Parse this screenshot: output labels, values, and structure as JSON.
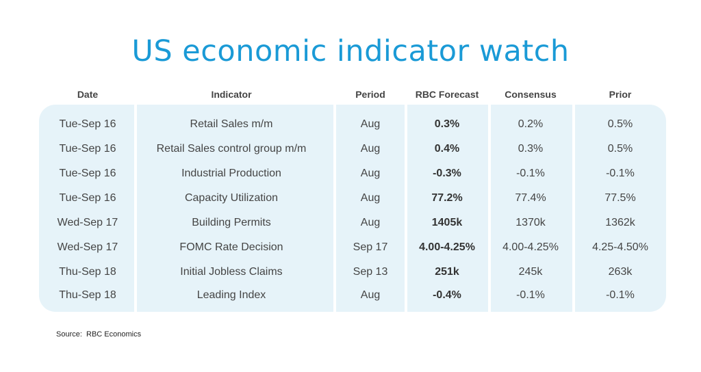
{
  "title": "US economic indicator watch",
  "columns": [
    "Date",
    "Indicator",
    "Period",
    "RBC Forecast",
    "Consensus",
    "Prior"
  ],
  "rows": [
    [
      "Tue-Sep 16",
      "Retail Sales m/m",
      "Aug",
      "0.3%",
      "0.2%",
      "0.5%"
    ],
    [
      "Tue-Sep 16",
      "Retail Sales control group m/m",
      "Aug",
      "0.4%",
      "0.3%",
      "0.5%"
    ],
    [
      "Tue-Sep 16",
      "Industrial Production",
      "Aug",
      "-0.3%",
      "-0.1%",
      "-0.1%"
    ],
    [
      "Tue-Sep 16",
      "Capacity Utilization",
      "Aug",
      "77.2%",
      "77.4%",
      "77.5%"
    ],
    [
      "Wed-Sep 17",
      "Building Permits",
      "Aug",
      "1405k",
      "1370k",
      "1362k"
    ],
    [
      "Wed-Sep 17",
      "FOMC Rate Decision",
      "Sep 17",
      "4.00-4.25%",
      "4.00-4.25%",
      "4.25-4.50%"
    ],
    [
      "Thu-Sep 18",
      "Initial Jobless Claims",
      "Sep 13",
      "251k",
      "245k",
      "263k"
    ],
    [
      "Thu-Sep 18",
      "Leading Index",
      "Aug",
      "-0.4%",
      "-0.1%",
      "-0.1%"
    ]
  ],
  "source": "Source:  RBC Economics",
  "colors": {
    "title": "#1a9ad6",
    "panel": "#e6f3f9"
  }
}
